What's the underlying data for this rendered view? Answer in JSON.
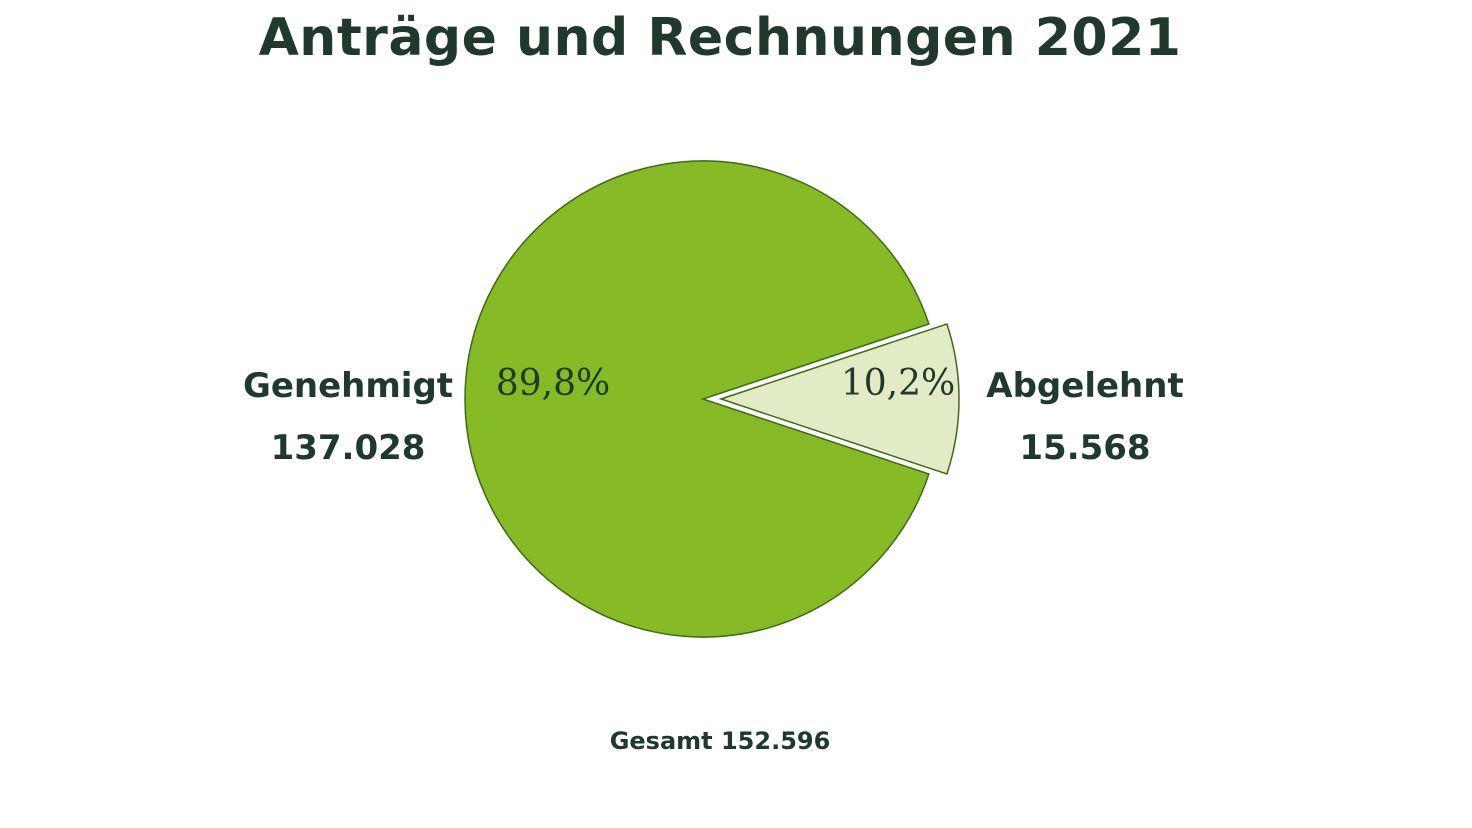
{
  "chart_data": {
    "type": "pie",
    "title": "Anträge und Rechnungen 2021",
    "slices": [
      {
        "name": "Genehmigt",
        "value": 137028,
        "value_label": "137.028",
        "percent": 89.8,
        "percent_label": "89,8%",
        "color": "#86bb25",
        "exploded": false
      },
      {
        "name": "Abgelehnt",
        "value": 15568,
        "value_label": "15.568",
        "percent": 10.2,
        "percent_label": "10,2%",
        "color": "#e1ebc5",
        "exploded": true
      }
    ],
    "total_label": "Gesamt 152.596",
    "outline_color": "#3e6b16",
    "text_color": "#1f3a2c"
  }
}
